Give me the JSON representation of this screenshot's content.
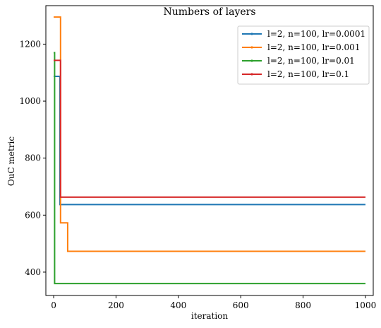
{
  "chart_data": {
    "type": "line",
    "title": "Numbers of layers",
    "xlabel": "iteration",
    "ylabel": "OuC metric",
    "xlim": [
      -25,
      1025
    ],
    "ylim": [
      318,
      1335
    ],
    "xticks": [
      0,
      200,
      400,
      600,
      800,
      1000
    ],
    "yticks": [
      400,
      600,
      800,
      1000,
      1200
    ],
    "grid": false,
    "legend_position": "top-right",
    "series": [
      {
        "name": "l=2, n=100, lr=0.0001",
        "color": "#1f77b4",
        "x": [
          0,
          20,
          20,
          1000
        ],
        "y": [
          1087,
          1087,
          637,
          637
        ]
      },
      {
        "name": "l=2, n=100, lr=0.001",
        "color": "#ff7f0e",
        "x": [
          0,
          22,
          22,
          45,
          45,
          1000
        ],
        "y": [
          1295,
          1295,
          573,
          573,
          473,
          473
        ]
      },
      {
        "name": "l=2, n=100, lr=0.01",
        "color": "#2ca02c",
        "x": [
          0,
          3,
          3,
          1000
        ],
        "y": [
          1170,
          1170,
          360,
          360
        ]
      },
      {
        "name": "l=2, n=100, lr=0.1",
        "color": "#d62728",
        "x": [
          0,
          22,
          22,
          1000
        ],
        "y": [
          1143,
          1143,
          663,
          663
        ]
      }
    ]
  }
}
